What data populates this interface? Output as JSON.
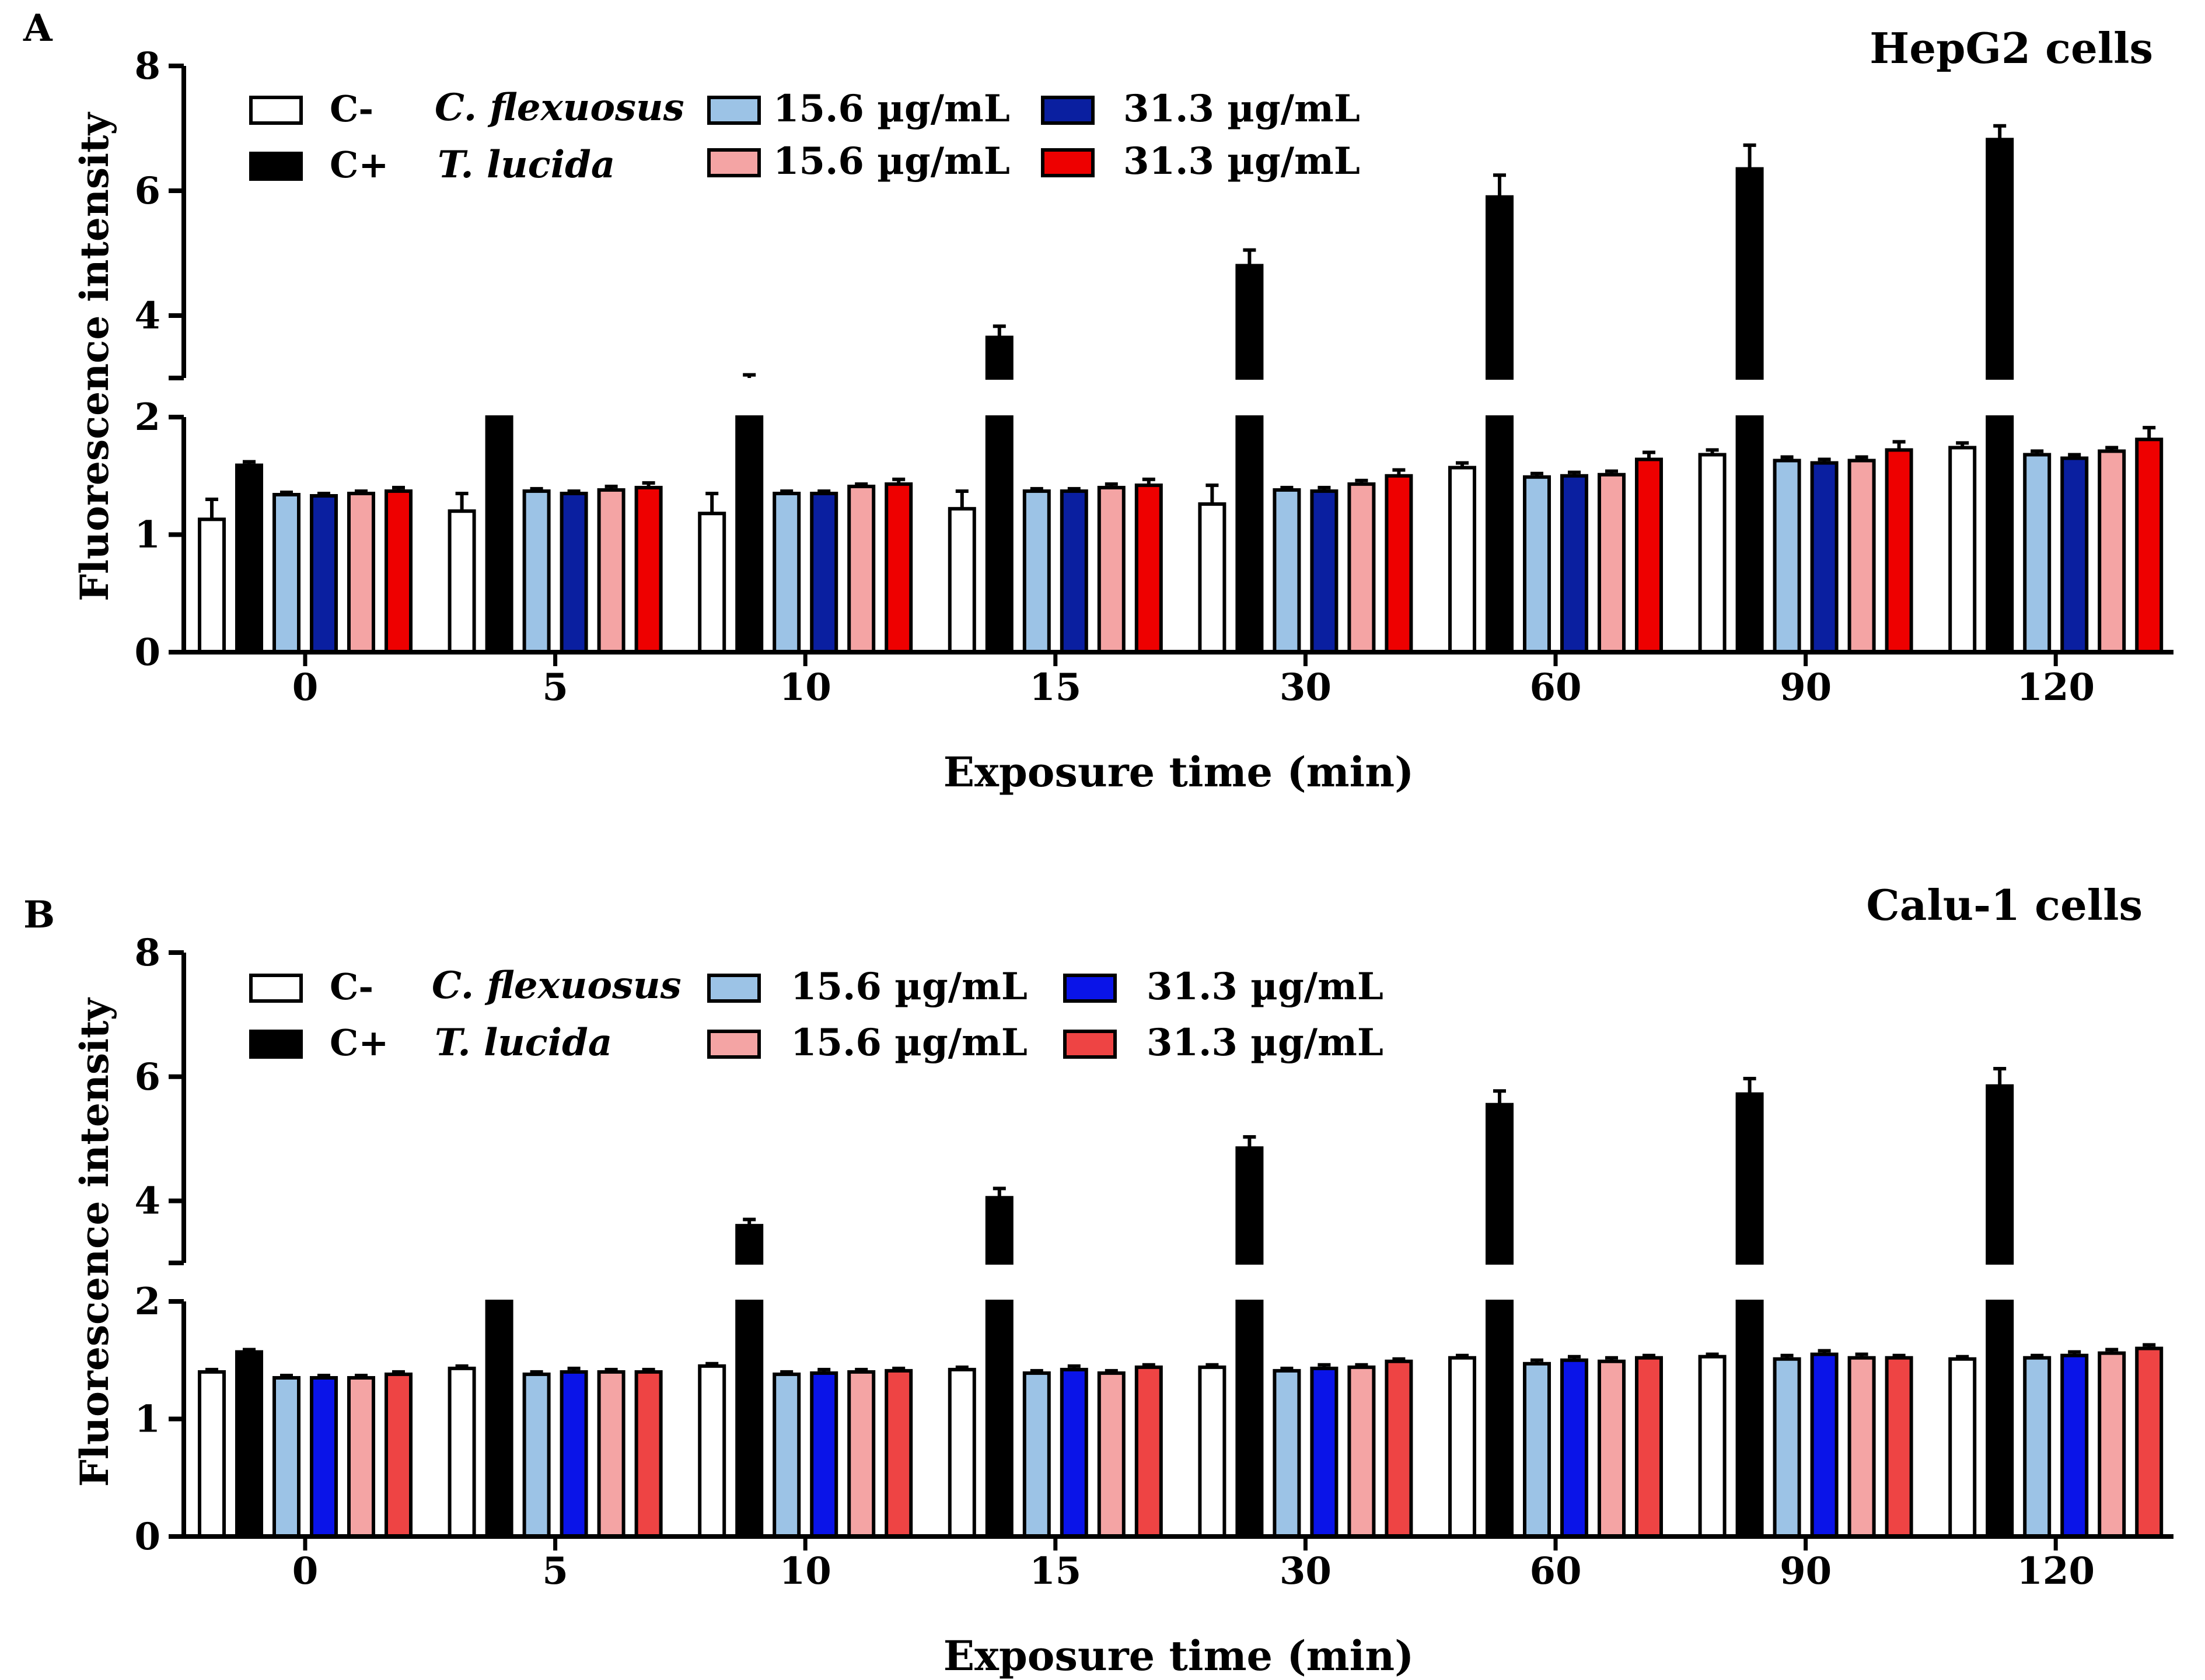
{
  "chart_data": [
    {
      "type": "bar",
      "panel_label": "A",
      "title": "HepG2 cells",
      "xlabel": "Exposure time (min)",
      "ylabel": "Fluorescence intensity",
      "categories": [
        "0",
        "5",
        "10",
        "15",
        "30",
        "60",
        "90",
        "120"
      ],
      "y_axis": {
        "lower_range": [
          0,
          2
        ],
        "upper_range": [
          3,
          8
        ],
        "lower_ticks": [
          "0",
          "1",
          "2"
        ],
        "upper_ticks": [
          "4",
          "6",
          "8"
        ],
        "broken": true
      },
      "legend": {
        "controls": [
          {
            "label": "C-",
            "color": "#ffffff"
          },
          {
            "label": "C+",
            "color": "#000000"
          }
        ],
        "extracts": [
          {
            "label": "C. flexuosus",
            "entries": [
              {
                "label": "15.6 µg/mL",
                "color": "#9cc3e6"
              },
              {
                "label": "31.3 µg/mL",
                "color": "#0a1fa0"
              }
            ]
          },
          {
            "label": "T. lucida",
            "entries": [
              {
                "label": "15.6 µg/mL",
                "color": "#f4a4a4"
              },
              {
                "label": "31.3 µg/mL",
                "color": "#ee0000"
              }
            ]
          }
        ]
      },
      "series": [
        {
          "name": "C-",
          "color": "#ffffff",
          "values": [
            1.13,
            1.2,
            1.18,
            1.22,
            1.26,
            1.57,
            1.68,
            1.74
          ],
          "errors": [
            0.17,
            0.15,
            0.17,
            0.15,
            0.16,
            0.04,
            0.04,
            0.04
          ]
        },
        {
          "name": "C+",
          "color": "#000000",
          "values": [
            1.59,
            2.6,
            2.9,
            3.65,
            4.8,
            5.9,
            6.35,
            6.82
          ],
          "errors": [
            0.03,
            0.2,
            0.15,
            0.18,
            0.25,
            0.35,
            0.38,
            0.22
          ]
        },
        {
          "name": "C. flexuosus 15.6 µg/mL",
          "color": "#9cc3e6",
          "values": [
            1.34,
            1.37,
            1.35,
            1.37,
            1.38,
            1.49,
            1.63,
            1.68
          ],
          "errors": [
            0.02,
            0.02,
            0.02,
            0.02,
            0.02,
            0.03,
            0.03,
            0.03
          ]
        },
        {
          "name": "C. flexuosus 31.3 µg/mL",
          "color": "#0a1fa0",
          "values": [
            1.33,
            1.35,
            1.35,
            1.37,
            1.37,
            1.5,
            1.61,
            1.65
          ],
          "errors": [
            0.02,
            0.02,
            0.02,
            0.02,
            0.03,
            0.03,
            0.03,
            0.03
          ]
        },
        {
          "name": "T. lucida 15.6 µg/mL",
          "color": "#f4a4a4",
          "values": [
            1.35,
            1.38,
            1.41,
            1.4,
            1.43,
            1.51,
            1.63,
            1.71
          ],
          "errors": [
            0.02,
            0.03,
            0.02,
            0.03,
            0.03,
            0.03,
            0.03,
            0.03
          ]
        },
        {
          "name": "T. lucida 31.3 µg/mL",
          "color": "#ee0000",
          "values": [
            1.37,
            1.4,
            1.43,
            1.42,
            1.5,
            1.64,
            1.72,
            1.81
          ],
          "errors": [
            0.03,
            0.04,
            0.04,
            0.05,
            0.05,
            0.06,
            0.07,
            0.1
          ]
        }
      ]
    },
    {
      "type": "bar",
      "panel_label": "B",
      "title": "Calu-1 cells",
      "xlabel": "Exposure time (min)",
      "ylabel": "Fluorescence intensity",
      "categories": [
        "0",
        "5",
        "10",
        "15",
        "30",
        "60",
        "90",
        "120"
      ],
      "y_axis": {
        "lower_range": [
          0,
          2
        ],
        "upper_range": [
          3,
          8
        ],
        "lower_ticks": [
          "0",
          "1",
          "2"
        ],
        "upper_ticks": [
          "4",
          "6",
          "8"
        ],
        "broken": true
      },
      "legend": {
        "controls": [
          {
            "label": "C-",
            "color": "#ffffff"
          },
          {
            "label": "C+",
            "color": "#000000"
          }
        ],
        "extracts": [
          {
            "label": "C. flexuosus",
            "entries": [
              {
                "label": "15.6 µg/mL",
                "color": "#9cc3e6"
              },
              {
                "label": "31.3 µg/mL",
                "color": "#0a14e8"
              }
            ]
          },
          {
            "label": "T. lucida",
            "entries": [
              {
                "label": "15.6 µg/mL",
                "color": "#f4a4a4"
              },
              {
                "label": "31.3 µg/mL",
                "color": "#ee4444"
              }
            ]
          }
        ]
      },
      "series": [
        {
          "name": "C-",
          "color": "#ffffff",
          "values": [
            1.4,
            1.43,
            1.45,
            1.42,
            1.44,
            1.52,
            1.53,
            1.51
          ],
          "errors": [
            0.02,
            0.02,
            0.02,
            0.02,
            0.02,
            0.02,
            0.02,
            0.02
          ]
        },
        {
          "name": "C+",
          "color": "#000000",
          "values": [
            1.57,
            2.7,
            3.6,
            4.05,
            4.85,
            5.55,
            5.72,
            5.85
          ],
          "errors": [
            0.02,
            0.2,
            0.1,
            0.15,
            0.18,
            0.22,
            0.25,
            0.28
          ]
        },
        {
          "name": "C. flexuosus 15.6 µg/mL",
          "color": "#9cc3e6",
          "values": [
            1.35,
            1.38,
            1.38,
            1.39,
            1.41,
            1.47,
            1.51,
            1.52
          ],
          "errors": [
            0.02,
            0.02,
            0.02,
            0.02,
            0.02,
            0.03,
            0.03,
            0.02
          ]
        },
        {
          "name": "C. flexuosus 31.3 µg/mL",
          "color": "#0a14e8",
          "values": [
            1.35,
            1.4,
            1.39,
            1.42,
            1.43,
            1.5,
            1.55,
            1.54
          ],
          "errors": [
            0.02,
            0.03,
            0.03,
            0.03,
            0.03,
            0.03,
            0.03,
            0.03
          ]
        },
        {
          "name": "T. lucida 15.6 µg/mL",
          "color": "#f4a4a4",
          "values": [
            1.35,
            1.4,
            1.4,
            1.39,
            1.44,
            1.49,
            1.52,
            1.56
          ],
          "errors": [
            0.02,
            0.02,
            0.02,
            0.02,
            0.02,
            0.03,
            0.03,
            0.03
          ]
        },
        {
          "name": "T. lucida 31.3 µg/mL",
          "color": "#ee4444",
          "values": [
            1.38,
            1.4,
            1.41,
            1.44,
            1.49,
            1.52,
            1.52,
            1.6
          ],
          "errors": [
            0.02,
            0.02,
            0.02,
            0.02,
            0.02,
            0.02,
            0.02,
            0.03
          ]
        }
      ]
    }
  ]
}
